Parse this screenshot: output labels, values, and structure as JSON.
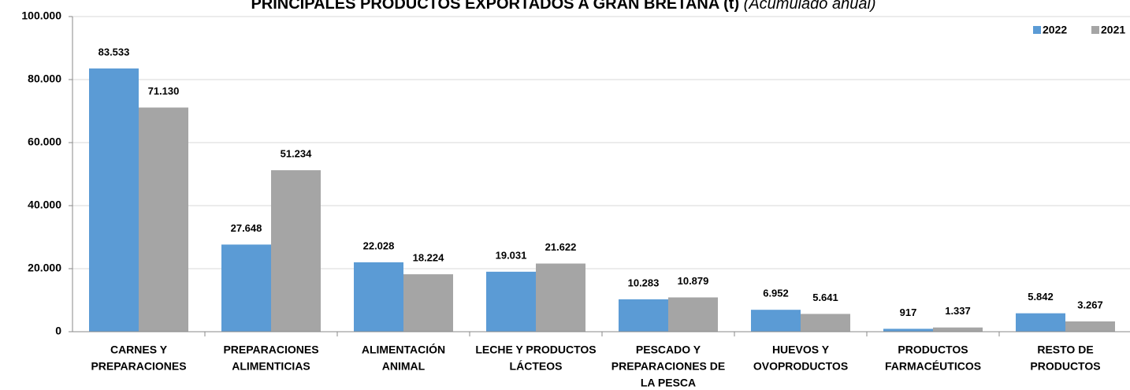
{
  "chart_data": {
    "type": "bar",
    "title": "PRINCIPALES PRODUCTOS EXPORTADOS A GRAN BRETAÑA (t)",
    "subtitle": "(Acumulado anual)",
    "categories": [
      [
        "CARNES Y",
        "PREPARACIONES"
      ],
      [
        "PREPARACIONES",
        "ALIMENTICIAS"
      ],
      [
        "ALIMENTACIÓN",
        "ANIMAL"
      ],
      [
        "LECHE Y PRODUCTOS",
        "LÁCTEOS"
      ],
      [
        "PESCADO Y",
        "PREPARACIONES DE",
        "LA PESCA"
      ],
      [
        "HUEVOS Y",
        "OVOPRODUCTOS"
      ],
      [
        "PRODUCTOS",
        "FARMACÉUTICOS"
      ],
      [
        "RESTO DE",
        "PRODUCTOS"
      ]
    ],
    "series": [
      {
        "name": "2022",
        "color": "#5b9bd5",
        "values": [
          83533,
          27648,
          22028,
          19031,
          10283,
          6952,
          917,
          5842
        ],
        "value_labels": [
          "83.533",
          "27.648",
          "22.028",
          "19.031",
          "10.283",
          "6.952",
          "917",
          "5.842"
        ]
      },
      {
        "name": "2021",
        "color": "#a5a5a5",
        "values": [
          71130,
          51234,
          18224,
          21622,
          10879,
          5641,
          1337,
          3267
        ],
        "value_labels": [
          "71.130",
          "51.234",
          "18.224",
          "21.622",
          "10.879",
          "5.641",
          "1.337",
          "3.267"
        ]
      }
    ],
    "ylim": [
      0,
      100000
    ],
    "yticks": [
      0,
      {
        "value": 20000,
        "label": "20.000"
      },
      {
        "value": 40000,
        "label": "40.000"
      },
      {
        "value": 60000,
        "label": "60.000"
      },
      {
        "value": 80000,
        "label": "80.000"
      },
      {
        "value": 100000,
        "label": "100.000"
      }
    ],
    "grid": true,
    "legend": "top-right"
  }
}
